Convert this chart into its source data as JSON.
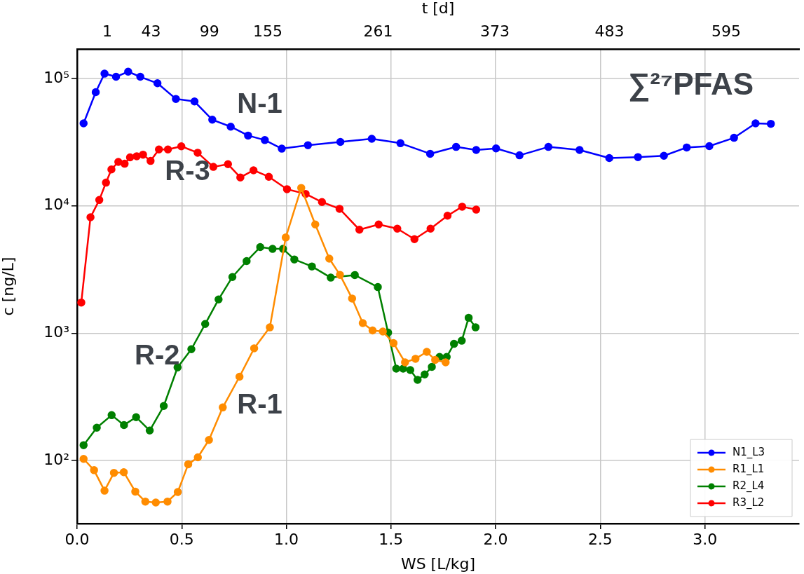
{
  "chart_data": {
    "type": "line",
    "xlabel": "WS [L/kg]",
    "ylabel": "c [ng/L]",
    "x2label": "t [d]",
    "xlim": [
      0,
      3.45
    ],
    "xticks": [
      {
        "value": 0,
        "label": "0.0"
      },
      {
        "value": 0.5,
        "label": "0.5"
      },
      {
        "value": 1,
        "label": "1.0"
      },
      {
        "value": 1.5,
        "label": "1.5"
      },
      {
        "value": 2,
        "label": "2.0"
      },
      {
        "value": 2.5,
        "label": "2.5"
      },
      {
        "value": 3,
        "label": "3.0"
      }
    ],
    "x2lim": [
      -28,
      665
    ],
    "x2ticks": [
      1,
      43,
      99,
      155,
      261,
      373,
      483,
      595
    ],
    "ylim": [
      32,
      170000
    ],
    "yticks": [
      {
        "value": 100,
        "label": "10²"
      },
      {
        "value": 1000,
        "label": "10³"
      },
      {
        "value": 10000,
        "label": "10⁴"
      },
      {
        "value": 100000,
        "label": "10⁵"
      }
    ],
    "log": "y",
    "grid": true,
    "legend": "bottom right",
    "marker": "circle",
    "line_style": "solid",
    "series": [
      {
        "name": "N1_L3",
        "color": "#0000ff",
        "x": [
          0.031,
          0.089,
          0.131,
          0.186,
          0.244,
          0.302,
          0.384,
          0.472,
          0.561,
          0.646,
          0.734,
          0.817,
          0.897,
          0.978,
          1.103,
          1.258,
          1.408,
          1.545,
          1.687,
          1.811,
          1.907,
          2.002,
          2.114,
          2.252,
          2.401,
          2.543,
          2.68,
          2.804,
          2.913,
          3.021,
          3.139,
          3.242,
          3.315
        ],
        "values": [
          44400,
          78000,
          109000,
          103000,
          113000,
          103000,
          91600,
          69000,
          65900,
          47400,
          41800,
          35600,
          32800,
          28100,
          29900,
          31700,
          33600,
          31000,
          25600,
          29000,
          27400,
          28200,
          24900,
          29000,
          27400,
          23700,
          24100,
          24700,
          28700,
          29400,
          34200,
          44400,
          44000
        ]
      },
      {
        "name": "R1_L1",
        "color": "#ff8c00",
        "x": [
          0.031,
          0.081,
          0.131,
          0.176,
          0.223,
          0.278,
          0.326,
          0.376,
          0.432,
          0.481,
          0.531,
          0.577,
          0.63,
          0.696,
          0.776,
          0.846,
          0.921,
          0.997,
          1.071,
          1.138,
          1.205,
          1.256,
          1.314,
          1.365,
          1.412,
          1.461,
          1.512,
          1.567,
          1.617,
          1.671,
          1.711,
          1.761
        ],
        "values": [
          103,
          84,
          58,
          80,
          81,
          57,
          47.6,
          46.8,
          47.6,
          56.6,
          93.5,
          106,
          145,
          261,
          455,
          760,
          1110,
          5640,
          13800,
          7130,
          3850,
          2870,
          1870,
          1200,
          1050,
          1030,
          835,
          590,
          629,
          713,
          617,
          590
        ]
      },
      {
        "name": "R2_L4",
        "color": "#008000",
        "x": [
          0.031,
          0.094,
          0.165,
          0.224,
          0.282,
          0.347,
          0.414,
          0.48,
          0.546,
          0.612,
          0.676,
          0.742,
          0.81,
          0.875,
          0.934,
          0.984,
          1.038,
          1.122,
          1.212,
          1.327,
          1.437,
          1.486,
          1.525,
          1.558,
          1.592,
          1.627,
          1.661,
          1.695,
          1.732,
          1.766,
          1.801,
          1.838,
          1.871,
          1.904
        ],
        "values": [
          132,
          181,
          227,
          190,
          219,
          172,
          268,
          538,
          748,
          1180,
          1840,
          2760,
          3680,
          4740,
          4590,
          4590,
          3790,
          3340,
          2730,
          2860,
          2300,
          1010,
          526,
          526,
          513,
          430,
          474,
          543,
          650,
          650,
          824,
          873,
          1320,
          1110
        ]
      },
      {
        "name": "R3_L2",
        "color": "#ff0000",
        "x": [
          0.02,
          0.064,
          0.106,
          0.138,
          0.164,
          0.197,
          0.227,
          0.253,
          0.285,
          0.315,
          0.351,
          0.391,
          0.434,
          0.498,
          0.576,
          0.651,
          0.721,
          0.78,
          0.843,
          0.916,
          1.003,
          1.092,
          1.17,
          1.254,
          1.349,
          1.441,
          1.53,
          1.612,
          1.689,
          1.77,
          1.84,
          1.907
        ],
        "values": [
          1740,
          8130,
          11100,
          15200,
          19300,
          22100,
          21400,
          24000,
          24500,
          25200,
          22500,
          27700,
          27700,
          29300,
          26100,
          20200,
          21200,
          16700,
          19000,
          16900,
          13500,
          12400,
          10700,
          9470,
          6490,
          7130,
          6610,
          5470,
          6610,
          8360,
          9840,
          9330
        ]
      }
    ],
    "annotations": [
      "N-1",
      "R-3",
      "R-2",
      "R-1",
      "∑²⁷PFAS"
    ]
  }
}
